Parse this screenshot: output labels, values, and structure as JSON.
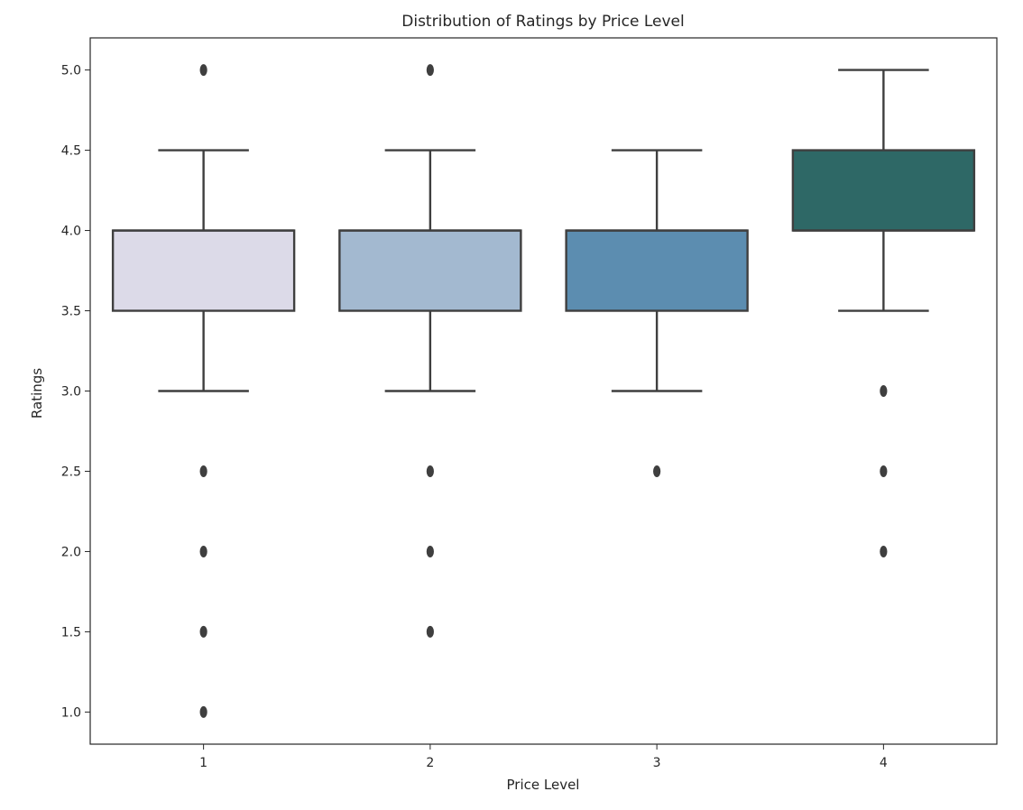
{
  "chart_data": {
    "type": "box",
    "title": "Distribution of Ratings by Price Level",
    "xlabel": "Price Level",
    "ylabel": "Ratings",
    "categories": [
      "1",
      "2",
      "3",
      "4"
    ],
    "ylim": [
      0.8,
      5.2
    ],
    "yticks": [
      1.0,
      1.5,
      2.0,
      2.5,
      3.0,
      3.5,
      4.0,
      4.5,
      5.0
    ],
    "ytick_labels": [
      "1.0",
      "1.5",
      "2.0",
      "2.5",
      "3.0",
      "3.5",
      "4.0",
      "4.5",
      "5.0"
    ],
    "grid": false,
    "boxes": [
      {
        "category": "1",
        "whisker_low": 3.0,
        "q1": 3.5,
        "median": 4.0,
        "q3": 4.0,
        "whisker_high": 4.5,
        "outliers": [
          5.0,
          2.5,
          2.0,
          1.5,
          1.0
        ],
        "color": "#dcdae8"
      },
      {
        "category": "2",
        "whisker_low": 3.0,
        "q1": 3.5,
        "median": 4.0,
        "q3": 4.0,
        "whisker_high": 4.5,
        "outliers": [
          5.0,
          2.5,
          2.0,
          1.5
        ],
        "color": "#a3b9d0"
      },
      {
        "category": "3",
        "whisker_low": 3.0,
        "q1": 3.5,
        "median": 4.0,
        "q3": 4.0,
        "whisker_high": 4.5,
        "outliers": [
          2.5
        ],
        "color": "#5c8db0"
      },
      {
        "category": "4",
        "whisker_low": 3.5,
        "q1": 4.0,
        "median": 4.0,
        "q3": 4.5,
        "whisker_high": 5.0,
        "outliers": [
          3.0,
          2.5,
          2.0
        ],
        "color": "#2e6866"
      }
    ]
  }
}
